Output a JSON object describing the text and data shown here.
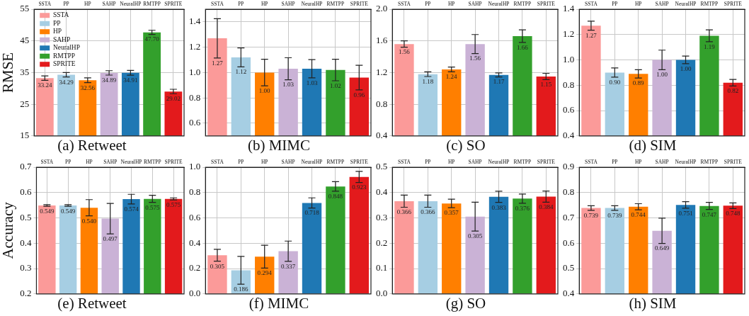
{
  "chart_data": [
    {
      "type": "bar",
      "title": "(a) Retweet",
      "ylabel": "RMSE",
      "categories": [
        "SSTA",
        "PP",
        "HP",
        "SAHP",
        "NeuralHP",
        "RMTPP",
        "SPRITE"
      ],
      "series": [
        {
          "name": "SSTA",
          "color": "#fb9a99",
          "values": [
            33.24,
            null,
            null,
            null,
            null,
            null,
            null
          ],
          "errors": [
            0.7,
            null,
            null,
            null,
            null,
            null,
            null
          ],
          "value_labels": [
            "33.24",
            null,
            null,
            null,
            null,
            null,
            null
          ]
        },
        {
          "name": "PP",
          "color": "#a6cee3",
          "values": [
            null,
            34.29,
            null,
            null,
            null,
            null,
            null
          ],
          "errors": [
            null,
            0.7,
            null,
            null,
            null,
            null,
            null
          ],
          "value_labels": [
            null,
            "34.29",
            null,
            null,
            null,
            null,
            null
          ]
        },
        {
          "name": "HP",
          "color": "#ff7f00",
          "values": [
            null,
            null,
            32.56,
            null,
            null,
            null,
            null
          ],
          "errors": [
            null,
            null,
            0.75,
            null,
            null,
            null,
            null
          ],
          "value_labels": [
            null,
            null,
            "32.56",
            null,
            null,
            null,
            null
          ]
        },
        {
          "name": "SAHP",
          "color": "#cab2d6",
          "values": [
            null,
            null,
            null,
            34.89,
            null,
            null,
            null
          ],
          "errors": [
            null,
            null,
            null,
            0.7,
            null,
            null,
            null
          ],
          "value_labels": [
            null,
            null,
            null,
            "34.89",
            null,
            null,
            null
          ]
        },
        {
          "name": "NeuralHP",
          "color": "#1f78b4",
          "values": [
            null,
            null,
            null,
            null,
            34.91,
            null,
            null
          ],
          "errors": [
            null,
            null,
            null,
            null,
            0.75,
            null,
            null
          ],
          "value_labels": [
            null,
            null,
            null,
            null,
            "34.91",
            null,
            null
          ]
        },
        {
          "name": "RMTPP",
          "color": "#33a02c",
          "values": [
            null,
            null,
            null,
            null,
            null,
            47.7,
            null
          ],
          "errors": [
            null,
            null,
            null,
            null,
            null,
            0.65,
            null
          ],
          "value_labels": [
            null,
            null,
            null,
            null,
            null,
            "47.70",
            null
          ]
        },
        {
          "name": "SPRITE",
          "color": "#e31a1c",
          "values": [
            null,
            null,
            null,
            null,
            null,
            null,
            29.02
          ],
          "errors": [
            null,
            null,
            null,
            null,
            null,
            null,
            0.7
          ],
          "value_labels": [
            null,
            null,
            null,
            null,
            null,
            null,
            "29.02"
          ]
        }
      ],
      "ylim": [
        15,
        55
      ],
      "yticks": [
        15,
        25,
        35,
        45,
        55
      ],
      "grid": true,
      "legend": "top left"
    },
    {
      "type": "bar",
      "title": "(b) MIMC",
      "categories": [
        "SSTA",
        "PP",
        "HP",
        "SAHP",
        "NeuralHP",
        "RMTPP",
        "SPRITE"
      ],
      "values": [
        1.27,
        1.12,
        1.0,
        1.03,
        1.03,
        1.02,
        0.96
      ],
      "value_labels": [
        "1.27",
        "1.12",
        "1.00",
        "1.03",
        "1.03",
        "1.02",
        "0.96"
      ],
      "errors": [
        0.155,
        0.075,
        0.105,
        0.087,
        0.072,
        0.085,
        0.097
      ],
      "colors": [
        "#fb9a99",
        "#a6cee3",
        "#ff7f00",
        "#cab2d6",
        "#1f78b4",
        "#33a02c",
        "#e31a1c"
      ],
      "ylim": [
        0.5,
        1.5
      ],
      "yticks": [
        0.6,
        0.8,
        {
          "value": 1,
          "label": "1.0"
        },
        1.2,
        1.4
      ],
      "grid": true
    },
    {
      "type": "bar",
      "title": "(c) SO",
      "categories": [
        "SSTA",
        "PP",
        "HP",
        "SAHP",
        "NeuralHP",
        "RMTPP",
        "SPRITE"
      ],
      "values": [
        1.56,
        1.18,
        1.24,
        1.56,
        1.17,
        1.66,
        1.15
      ],
      "value_labels": [
        "1.56",
        "1.18",
        "1.24",
        "1.56",
        "1.17",
        "1.66",
        "1.15"
      ],
      "errors": [
        0.04,
        0.03,
        0.03,
        0.12,
        0.025,
        0.08,
        0.04
      ],
      "colors": [
        "#fb9a99",
        "#a6cee3",
        "#ff7f00",
        "#cab2d6",
        "#1f78b4",
        "#33a02c",
        "#e31a1c"
      ],
      "ylim": [
        0.4,
        2.0
      ],
      "yticks": [
        0.4,
        0.8,
        1.2,
        1.6,
        {
          "value": 2,
          "label": "2.0"
        }
      ],
      "grid": true
    },
    {
      "type": "bar",
      "title": "(d) SIM",
      "categories": [
        "SSTA",
        "PP",
        "HP",
        "SAHP",
        "NeuralHP",
        "RMTPP",
        "SPRITE"
      ],
      "values": [
        1.27,
        0.9,
        0.89,
        1.0,
        1.0,
        1.19,
        0.82
      ],
      "value_labels": [
        "1.27",
        "0.90",
        "0.89",
        "1.00",
        "1.00",
        "1.19",
        "0.82"
      ],
      "errors": [
        0.036,
        0.036,
        0.033,
        0.077,
        0.03,
        0.047,
        0.026
      ],
      "colors": [
        "#fb9a99",
        "#a6cee3",
        "#ff7f00",
        "#cab2d6",
        "#1f78b4",
        "#33a02c",
        "#e31a1c"
      ],
      "ylim": [
        0.4,
        1.4
      ],
      "yticks": [
        0.4,
        0.6,
        0.8,
        {
          "value": 1,
          "label": "1.0"
        },
        1.2,
        1.4
      ],
      "grid": true
    },
    {
      "type": "bar",
      "title": "(e) Retweet",
      "ylabel": "Accuracy",
      "categories": [
        "SSTA",
        "PP",
        "HP",
        "SAHP",
        "NeuralHP",
        "RMTPP",
        "SPRITE"
      ],
      "values": [
        0.549,
        0.549,
        0.54,
        0.497,
        0.574,
        0.575,
        0.575
      ],
      "value_labels": [
        "0.549",
        "0.549",
        "0.540",
        "0.497",
        "0.574",
        "0.575",
        "0.575"
      ],
      "errors": [
        0.003,
        0.003,
        0.032,
        0.06,
        0.019,
        0.014,
        0.004
      ],
      "colors": [
        "#fb9a99",
        "#a6cee3",
        "#ff7f00",
        "#cab2d6",
        "#1f78b4",
        "#33a02c",
        "#e31a1c"
      ],
      "ylim": [
        0.2,
        0.7
      ],
      "yticks": [
        0.2,
        0.3,
        0.4,
        0.5,
        0.6,
        0.7
      ],
      "grid": true
    },
    {
      "type": "bar",
      "title": "(f) MIMC",
      "categories": [
        "SSTA",
        "PP",
        "HP",
        "SAHP",
        "NeuralHP",
        "RMTPP",
        "SPRITE"
      ],
      "values": [
        0.305,
        0.186,
        0.294,
        0.337,
        0.718,
        0.848,
        0.923
      ],
      "value_labels": [
        "0.305",
        "0.186",
        "0.294",
        "0.337",
        "0.718",
        "0.848",
        "0.923"
      ],
      "errors": [
        0.047,
        0.11,
        0.09,
        0.08,
        0.04,
        0.038,
        0.044
      ],
      "colors": [
        "#fb9a99",
        "#a6cee3",
        "#ff7f00",
        "#cab2d6",
        "#1f78b4",
        "#33a02c",
        "#e31a1c"
      ],
      "ylim": [
        0,
        1
      ],
      "yticks": [
        {
          "value": 0,
          "label": "0.0"
        },
        0.2,
        0.4,
        0.6,
        0.8,
        {
          "value": 1,
          "label": "1.0"
        }
      ],
      "grid": true
    },
    {
      "type": "bar",
      "title": "(g) SO",
      "categories": [
        "SSTA",
        "PP",
        "HP",
        "SAHP",
        "NeuralHP",
        "RMTPP",
        "SPRITE"
      ],
      "values": [
        0.366,
        0.366,
        0.357,
        0.305,
        0.383,
        0.376,
        0.384
      ],
      "value_labels": [
        "0.366",
        "0.366",
        "0.357",
        "0.305",
        "0.383",
        "0.376",
        "0.384"
      ],
      "errors": [
        0.024,
        0.024,
        0.017,
        0.057,
        0.022,
        0.018,
        0.022
      ],
      "colors": [
        "#fb9a99",
        "#a6cee3",
        "#ff7f00",
        "#cab2d6",
        "#1f78b4",
        "#33a02c",
        "#e31a1c"
      ],
      "ylim": [
        0,
        0.5
      ],
      "yticks": [
        {
          "value": 0,
          "label": "0.0"
        },
        0.1,
        0.2,
        0.3,
        0.4,
        0.5
      ],
      "grid": true
    },
    {
      "type": "bar",
      "title": "(h) SIM",
      "categories": [
        "SSTA",
        "PP",
        "HP",
        "SAHP",
        "NeuralHP",
        "RMTPP",
        "SPRITE"
      ],
      "values": [
        0.739,
        0.739,
        0.744,
        0.649,
        0.751,
        0.747,
        0.748
      ],
      "value_labels": [
        "0.739",
        "0.739",
        "0.744",
        "0.649",
        "0.751",
        "0.747",
        "0.748"
      ],
      "errors": [
        0.009,
        0.009,
        0.012,
        0.05,
        0.013,
        0.014,
        0.011
      ],
      "colors": [
        "#fb9a99",
        "#a6cee3",
        "#ff7f00",
        "#cab2d6",
        "#1f78b4",
        "#33a02c",
        "#e31a1c"
      ],
      "ylim": [
        0.4,
        0.9
      ],
      "yticks": [
        0.4,
        0.5,
        0.6,
        0.7,
        0.8,
        0.9
      ],
      "grid": true
    }
  ]
}
